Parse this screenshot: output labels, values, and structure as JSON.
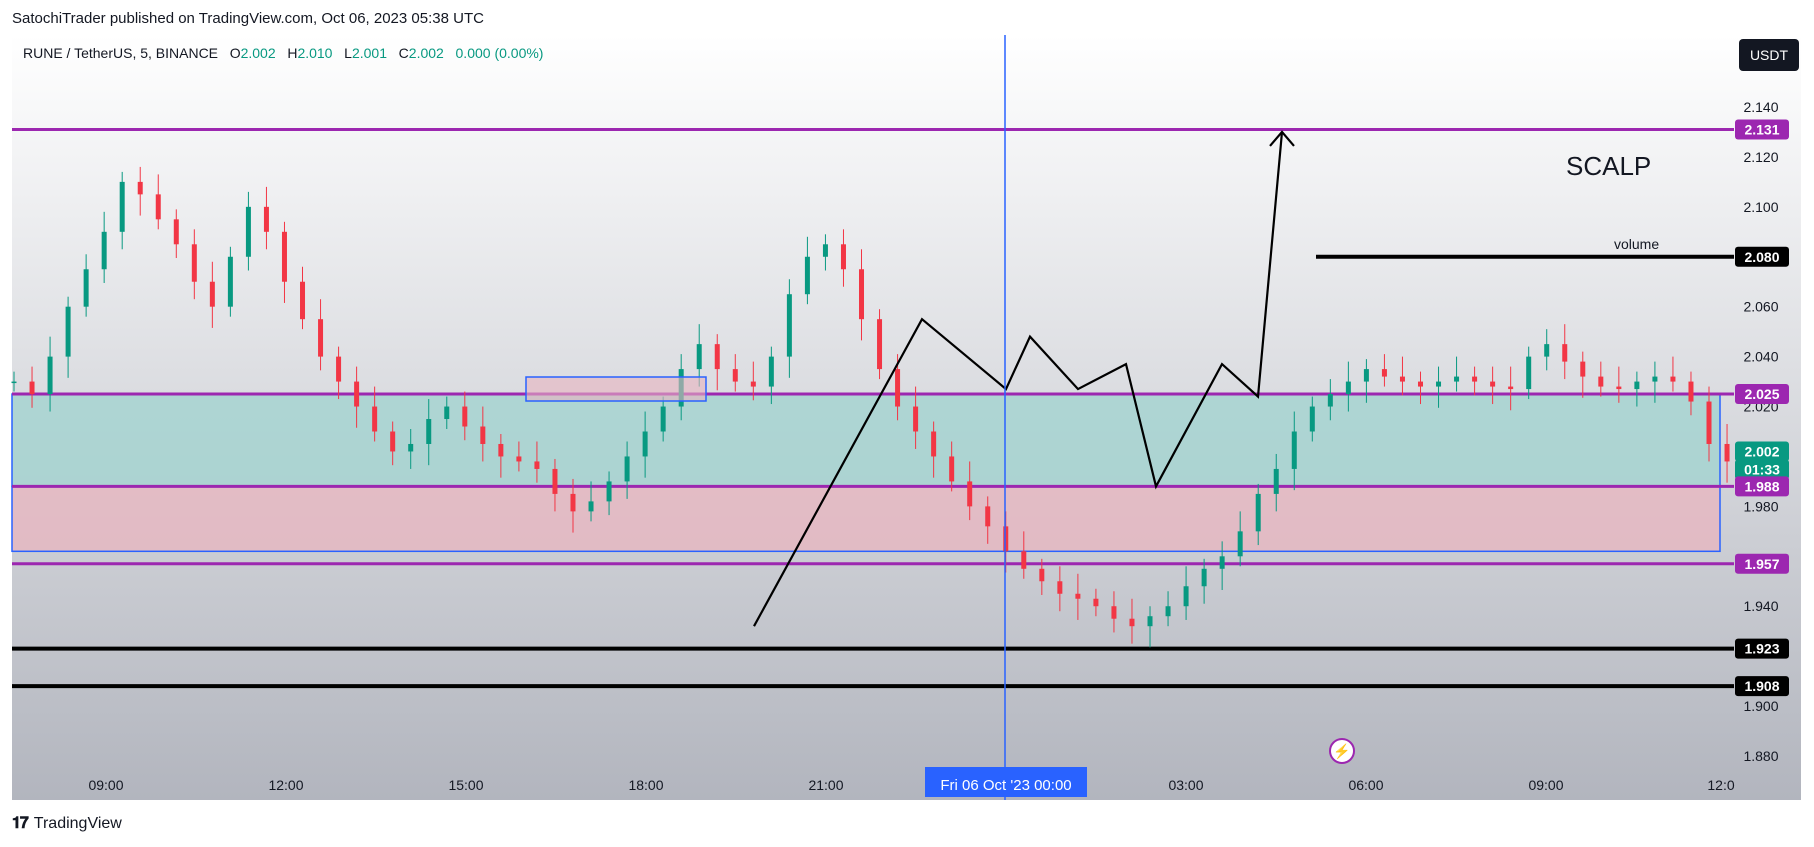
{
  "header": {
    "published": "SatochiTrader published on TradingView.com, Oct 06, 2023 05:38 UTC"
  },
  "symbol": {
    "name": "RUNE / TetherUS, 5, BINANCE",
    "o_label": "O",
    "o_value": "2.002",
    "h_label": "H",
    "h_value": "2.010",
    "l_label": "L",
    "l_value": "2.001",
    "c_label": "C",
    "c_value": "2.002",
    "change": "0.000 (0.00%)"
  },
  "currency_button": "USDT",
  "annotations": {
    "scalp_text": "SCALP",
    "volume_text": "volume"
  },
  "time_axis": {
    "ticks": [
      "09:00",
      "12:00",
      "15:00",
      "18:00",
      "21:00",
      "03:00",
      "06:00",
      "09:00",
      "12:0"
    ],
    "crosshair_label": "Fri 06 Oct '23   00:00"
  },
  "price_axis": {
    "ticks": [
      "2.140",
      "2.120",
      "2.100",
      "2.060",
      "2.040",
      "2.020",
      "1.980",
      "1.940",
      "1.900",
      "1.880"
    ],
    "labels": [
      {
        "text": "2.131",
        "color": "#9c27b0"
      },
      {
        "text": "2.080",
        "color": "#000000"
      },
      {
        "text": "2.025",
        "color": "#9c27b0"
      },
      {
        "text": "2.002",
        "color": "#089981"
      },
      {
        "text": "01:33",
        "color": "#089981"
      },
      {
        "text": "1.988",
        "color": "#9c27b0"
      },
      {
        "text": "1.957",
        "color": "#9c27b0"
      },
      {
        "text": "1.923",
        "color": "#000000"
      },
      {
        "text": "1.908",
        "color": "#000000"
      }
    ]
  },
  "footer": {
    "logo_text": "TradingView"
  },
  "colors": {
    "bull": "#089981",
    "bear": "#f23645",
    "purple": "#9c27b0",
    "blue": "#2962ff",
    "green_zone": "#9fd3cf",
    "red_zone": "#e8b4bf"
  },
  "chart_data": {
    "type": "candlestick",
    "x": [
      "09:00",
      "12:00",
      "15:00",
      "18:00",
      "21:00",
      "00:00",
      "03:00",
      "06:00",
      "09:00",
      "12:00"
    ],
    "ylim": [
      1.87,
      2.145
    ],
    "horizontal_levels": [
      2.131,
      2.08,
      2.025,
      1.988,
      1.957,
      1.923,
      1.908
    ],
    "zones": [
      {
        "name": "green-zone",
        "from": 1.988,
        "to": 2.025
      },
      {
        "name": "red-zone",
        "from": 1.962,
        "to": 1.988
      }
    ],
    "path_points": [
      [
        7.6,
        1.961
      ],
      [
        7.8,
        1.932
      ],
      [
        10.6,
        2.055
      ],
      [
        12.0,
        2.027
      ],
      [
        12.4,
        2.048
      ],
      [
        13.2,
        2.027
      ],
      [
        14.0,
        2.037
      ],
      [
        14.5,
        1.988
      ],
      [
        15.6,
        2.037
      ],
      [
        16.2,
        2.024
      ],
      [
        16.6,
        2.13
      ]
    ],
    "close_series": [
      2.03,
      2.025,
      2.04,
      2.06,
      2.075,
      2.09,
      2.11,
      2.105,
      2.095,
      2.085,
      2.07,
      2.06,
      2.08,
      2.1,
      2.09,
      2.07,
      2.055,
      2.04,
      2.03,
      2.02,
      2.01,
      2.002,
      2.005,
      2.015,
      2.02,
      2.012,
      2.005,
      2.0,
      1.998,
      1.995,
      1.985,
      1.978,
      1.982,
      1.99,
      2.0,
      2.01,
      2.02,
      2.035,
      2.045,
      2.035,
      2.03,
      2.028,
      2.04,
      2.065,
      2.08,
      2.085,
      2.075,
      2.055,
      2.035,
      2.02,
      2.01,
      2.0,
      1.99,
      1.98,
      1.972,
      1.962,
      1.955,
      1.95,
      1.945,
      1.943,
      1.94,
      1.935,
      1.932,
      1.936,
      1.94,
      1.948,
      1.955,
      1.96,
      1.97,
      1.985,
      1.995,
      2.01,
      2.02,
      2.025,
      2.03,
      2.035,
      2.032,
      2.03,
      2.028,
      2.03,
      2.032,
      2.03,
      2.028,
      2.027,
      2.04,
      2.045,
      2.038,
      2.032,
      2.028,
      2.027,
      2.03,
      2.032,
      2.03,
      2.022,
      2.005,
      1.998,
      2.002
    ]
  }
}
